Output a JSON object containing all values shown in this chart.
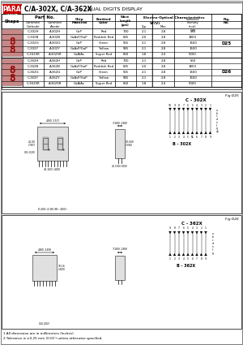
{
  "bg_color": "#ffffff",
  "header_red": "#cc0000",
  "title_part": "C/A-302X, C/A-362X",
  "title_desc": "DUAL DIGITS DISPLAY",
  "rows_302": [
    [
      "C-302H",
      "A-302H",
      "GaP",
      "Red",
      "700",
      "2.1",
      "2.8",
      "550"
    ],
    [
      "C-302B",
      "A-302B",
      "GaAsP/GaP",
      "Reddish Red",
      "635",
      "2.0",
      "2.8",
      "1800"
    ],
    [
      "C-302G",
      "A-302G",
      "GaP",
      "Green",
      "565",
      "2.1",
      "2.8",
      "1500"
    ],
    [
      "C-302Y",
      "A-302Y",
      "GaAsP/GaP",
      "Yellow",
      "585",
      "2.1",
      "2.8",
      "1500"
    ],
    [
      "C-302SR",
      "A-302SR",
      "GaAlAs",
      "Super Red",
      "660",
      "1.8",
      "2.4",
      "5000"
    ]
  ],
  "rows_362": [
    [
      "C-362H",
      "A-362H",
      "GaP",
      "Red",
      "700",
      "2.1",
      "2.8",
      "550"
    ],
    [
      "C-362B",
      "A-362B",
      "GaAsP/GaP",
      "Reddish Red",
      "635",
      "2.0",
      "2.8",
      "1800"
    ],
    [
      "C-362G",
      "A-362G",
      "GaP",
      "Green",
      "565",
      "2.1",
      "2.8",
      "1500"
    ],
    [
      "C-362Y",
      "A-362Y",
      "GaAsP/GaP",
      "Yellow",
      "585",
      "2.1",
      "2.8",
      "1500"
    ],
    [
      "C-362SR",
      "A-362SR",
      "GaAlAs",
      "Super Red",
      "660",
      "1.8",
      "2.4",
      "5000"
    ]
  ],
  "fig_302": "D25",
  "fig_362": "D26",
  "note1": "1.All dimension are in millimeters (Inches).",
  "note2": "2.Tolerance is ±0.25 mm (0.01') unless otherwise specified.",
  "panel1_label": "Fig D25",
  "panel2_label": "Fig D26",
  "c302_label": "C - 302X",
  "c362_label": "C - 362X",
  "dim1_w": "4.00(.157)",
  "dim1_h": "10.00(.394)",
  "dim1_pin": "40.100(.400)",
  "dim2_side": "7.100(.280)"
}
